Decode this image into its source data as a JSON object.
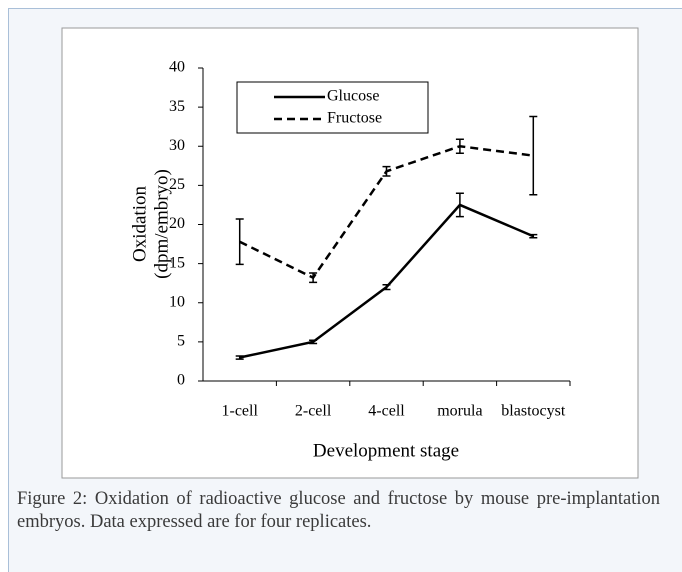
{
  "chart_data": {
    "type": "line",
    "ylabel": [
      "Oxidation",
      "(dpm/embryo)"
    ],
    "xlabel": "Development  stage",
    "categories": [
      "1-cell",
      "2-cell",
      "4-cell",
      "morula",
      "blastocyst"
    ],
    "series": [
      {
        "name": "Glucose",
        "color": "#000000",
        "dash": false,
        "values": [
          3,
          5,
          12,
          22.5,
          18.5
        ],
        "errors": [
          0.2,
          0.2,
          0.3,
          1.5,
          0.2
        ]
      },
      {
        "name": "Fructose",
        "color": "#000000",
        "dash": true,
        "values": [
          17.8,
          13.2,
          26.8,
          30,
          28.8
        ],
        "errors": [
          2.9,
          0.6,
          0.6,
          0.9,
          5
        ]
      }
    ],
    "ylim": [
      0,
      40
    ],
    "yticks": [
      0,
      5,
      10,
      15,
      20,
      25,
      30,
      35,
      40
    ],
    "legend": "upper left",
    "caption": "Figure 2: Oxidation of radioactive glucose and fructose by mouse pre-implantation embryos. Data expressed are for four replicates."
  }
}
